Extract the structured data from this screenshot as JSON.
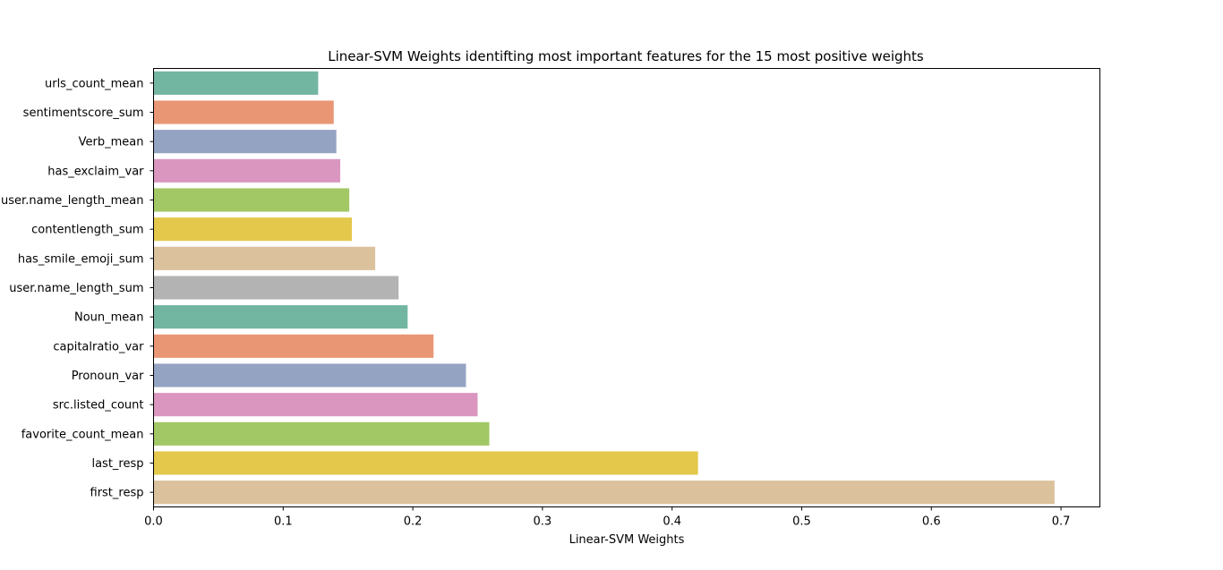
{
  "chart_data": {
    "type": "bar",
    "orientation": "horizontal",
    "title": "Linear-SVM Weights identifting most important features for the 15 most positive weights",
    "xlabel": "Linear-SVM Weights",
    "ylabel": "",
    "xlim": [
      0.0,
      0.73
    ],
    "x_ticks": [
      0.0,
      0.1,
      0.2,
      0.3,
      0.4,
      0.5,
      0.6,
      0.7
    ],
    "x_tick_labels": [
      "0.0",
      "0.1",
      "0.2",
      "0.3",
      "0.4",
      "0.5",
      "0.6",
      "0.7"
    ],
    "grid": false,
    "legend": "none",
    "categories": [
      "urls_count_mean",
      "sentimentscore_sum",
      "Verb_mean",
      "has_exclaim_var",
      "user.name_length_mean",
      "contentlength_sum",
      "has_smile_emoji_sum",
      "user.name_length_sum",
      "Noun_mean",
      "capitalratio_var",
      "Pronoun_var",
      "src.listed_count",
      "favorite_count_mean",
      "last_resp",
      "first_resp"
    ],
    "values": [
      0.127,
      0.139,
      0.141,
      0.144,
      0.151,
      0.153,
      0.171,
      0.189,
      0.196,
      0.216,
      0.241,
      0.25,
      0.259,
      0.42,
      0.695
    ],
    "colors": [
      "#72b6a1",
      "#e99675",
      "#95a3c3",
      "#db96c0",
      "#a2c865",
      "#e3c84b",
      "#dbc29d",
      "#b3b3b3",
      "#72b6a1",
      "#e99675",
      "#95a3c3",
      "#db96c0",
      "#a2c865",
      "#e3c84b",
      "#dbc29d"
    ]
  }
}
